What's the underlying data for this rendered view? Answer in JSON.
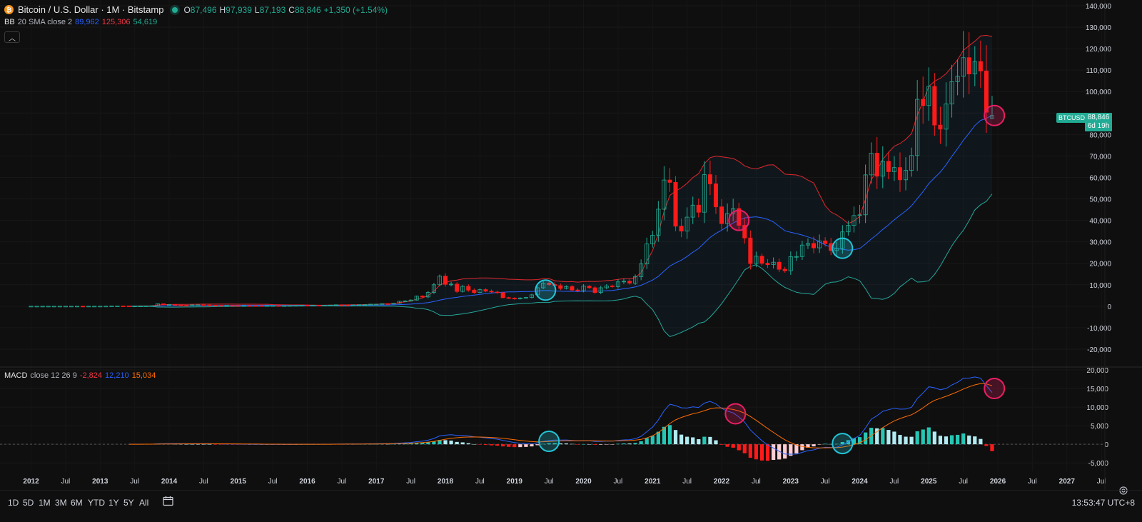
{
  "header": {
    "symbol_title": "Bitcoin / U.S. Dollar · 1M · Bitstamp",
    "ohlc": [
      {
        "key": "O",
        "value": "87,496"
      },
      {
        "key": "H",
        "value": "97,939"
      },
      {
        "key": "L",
        "value": "87,193"
      },
      {
        "key": "C",
        "value": "88,846"
      }
    ],
    "change": "+1,350 (+1.54%)"
  },
  "bb_legend": {
    "name": "BB",
    "params": "20 SMA close 2",
    "basis": "89,962",
    "upper": "125,306",
    "lower": "54,619"
  },
  "macd_legend": {
    "name": "MACD",
    "params": "close 12 26 9",
    "hist": "-2,824",
    "macd": "12,210",
    "signal": "15,034"
  },
  "price_tag": {
    "symbol": "BTCUSD",
    "price": "88,846",
    "countdown": "6d 19h"
  },
  "range_buttons": [
    "1D",
    "5D",
    "1M",
    "3M",
    "6M",
    "YTD",
    "1Y",
    "5Y",
    "All"
  ],
  "clock": "13:53:47 UTC+8",
  "colors": {
    "up": "#22ab94",
    "down": "#ff1a1a",
    "bb_upper": "#e0282e",
    "bb_basis": "#2962ff",
    "bb_lower": "#26a69a",
    "macd_line": "#2962ff",
    "signal_line": "#ff6d00",
    "cyan_marker": "#22c5d6",
    "pink_marker": "#e91e63"
  },
  "chart_data": [
    {
      "type": "candlestick",
      "title": "Bitcoin / U.S. Dollar · 1M · Bitstamp",
      "ylim": [
        -25000,
        140000
      ],
      "yticks": [
        140000,
        130000,
        120000,
        110000,
        100000,
        90000,
        80000,
        70000,
        60000,
        50000,
        40000,
        30000,
        20000,
        10000,
        0,
        -10000,
        -20000
      ],
      "ytick_labels": [
        "140,000",
        "130,000",
        "120,000",
        "110,000",
        "100,000",
        "",
        "80,000",
        "70,000",
        "60,000",
        "50,000",
        "40,000",
        "30,000",
        "20,000",
        "10,000",
        "0",
        "-10,000",
        "-20,000"
      ],
      "xlim": [
        2011.55,
        2027.55
      ],
      "xticks": [
        2012,
        2012.5,
        2013,
        2013.5,
        2014,
        2014.5,
        2015,
        2015.5,
        2016,
        2016.5,
        2017,
        2017.5,
        2018,
        2018.5,
        2019,
        2019.5,
        2020,
        2020.5,
        2021,
        2021.5,
        2022,
        2022.5,
        2023,
        2023.5,
        2024,
        2024.5,
        2025,
        2025.5,
        2026,
        2026.5,
        2027,
        2027.5
      ],
      "xtick_labels": [
        "2012",
        "Jul",
        "2013",
        "Jul",
        "2014",
        "Jul",
        "2015",
        "Jul",
        "2016",
        "Jul",
        "2017",
        "Jul",
        "2018",
        "Jul",
        "2019",
        "Jul",
        "2020",
        "Jul",
        "2021",
        "Jul",
        "2022",
        "Jul",
        "2023",
        "Jul",
        "2024",
        "Jul",
        "2025",
        "Jul",
        "2026",
        "Jul",
        "2027",
        "Jul"
      ],
      "closes": [
        {
          "start": 2012.0,
          "values": [
            5,
            5,
            5,
            5,
            5,
            7,
            9,
            10,
            12,
            11,
            12,
            13,
            20,
            33,
            93,
            140,
            129,
            97,
            98,
            106,
            141,
            211,
            1130,
            732
          ]
        },
        {
          "start": 2014.0,
          "values": [
            800,
            550,
            460,
            445,
            630,
            640,
            585,
            480,
            390,
            340,
            378,
            320,
            218,
            254,
            244,
            236,
            230,
            263,
            284,
            230,
            236,
            312,
            377,
            430
          ]
        },
        {
          "start": 2016.0,
          "values": [
            368,
            436,
            416,
            448,
            531,
            673,
            624,
            573,
            608,
            700,
            740,
            964
          ]
        },
        {
          "start": 2017.0,
          "values": [
            970,
            1190,
            1080,
            1350,
            2300,
            2480,
            2880,
            4700,
            4340,
            6450,
            10000,
            14000
          ]
        },
        {
          "start": 2018.0,
          "values": [
            10200,
            10300,
            6900,
            9240,
            7500,
            6400,
            7730,
            7000,
            6620,
            6300,
            4000,
            3740
          ]
        },
        {
          "start": 2019.0,
          "values": [
            3440,
            3820,
            4100,
            5300,
            8600,
            10800,
            10100,
            9600,
            8300,
            9150,
            7560,
            7200
          ]
        },
        {
          "start": 2020.0,
          "values": [
            9350,
            8600,
            6400,
            8600,
            9450,
            9140,
            11350,
            11650,
            10780,
            13800,
            19700,
            29000
          ]
        },
        {
          "start": 2021.0,
          "values": [
            33100,
            45200,
            58800,
            57700,
            37300,
            35000,
            41500,
            47100,
            43800,
            61300,
            57000,
            46300
          ]
        },
        {
          "start": 2022.0,
          "values": [
            38500,
            43200,
            45500,
            37700,
            31800,
            19900,
            23300,
            20000,
            19400,
            20500,
            17200,
            16550
          ]
        },
        {
          "start": 2023.0,
          "values": [
            23100,
            23150,
            28500,
            29250,
            27200,
            30450,
            29200,
            25950,
            26950,
            34650,
            37700,
            42250
          ]
        },
        {
          "start": 2024.0,
          "values": [
            42600,
            61200,
            71300,
            60600,
            67500,
            62700,
            64600,
            58900,
            63300,
            70200,
            96400,
            93500
          ]
        },
        {
          "start": 2025.0,
          "values": [
            102400,
            84400,
            82500,
            94200,
            104600,
            107100,
            115800,
            108200,
            114000,
            109600,
            90400,
            88846
          ]
        }
      ],
      "bollinger": {
        "period": 20,
        "stdev": 2,
        "basis_last": 89962,
        "upper_last": 125306,
        "lower_last": 54619
      },
      "markers": [
        {
          "x": 2019.45,
          "y": 7500,
          "color": "cyan"
        },
        {
          "x": 2022.25,
          "y": 40000,
          "color": "pink"
        },
        {
          "x": 2023.75,
          "y": 27000,
          "color": "cyan"
        },
        {
          "x": 2025.95,
          "y": 88846,
          "color": "pink"
        }
      ]
    },
    {
      "type": "bar",
      "title": "MACD close 12 26 9",
      "ylim": [
        -6500,
        20000
      ],
      "yticks": [
        20000,
        15000,
        10000,
        5000,
        0,
        -5000
      ],
      "ytick_labels": [
        "20,000",
        "15,000",
        "10,000",
        "5,000",
        "0",
        "-5,000"
      ],
      "series": [
        {
          "name": "MACD",
          "values_last": 12210
        },
        {
          "name": "Signal",
          "values_last": 15034
        },
        {
          "name": "Histogram",
          "values_last": -2824
        }
      ],
      "markers": [
        {
          "x": 2019.5,
          "y": 800,
          "color": "cyan"
        },
        {
          "x": 2022.2,
          "y": 8200,
          "color": "pink"
        },
        {
          "x": 2023.75,
          "y": 200,
          "color": "cyan"
        },
        {
          "x": 2025.95,
          "y": 15000,
          "color": "pink"
        }
      ]
    }
  ]
}
